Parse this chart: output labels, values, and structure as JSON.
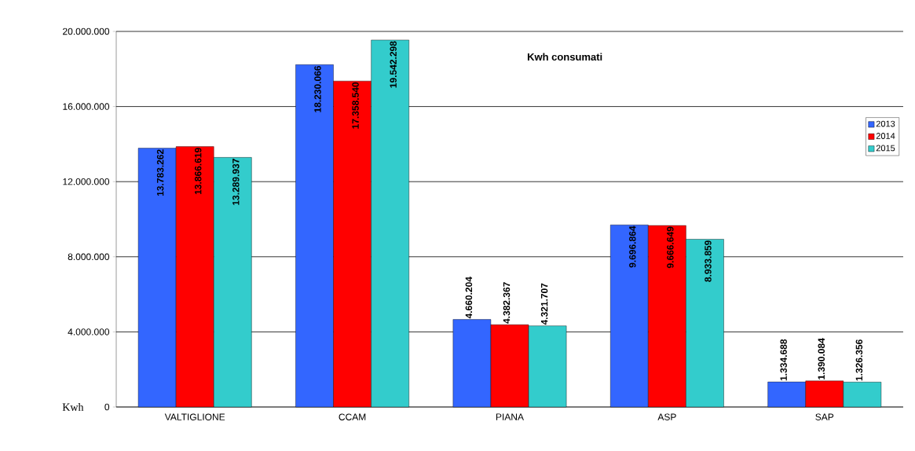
{
  "chart_data": {
    "type": "bar",
    "title": "Kwh consumati",
    "ylabel": "Kwh",
    "categories": [
      "VALTIGLIONE",
      "CCAM",
      "PIANA",
      "ASP",
      "SAP"
    ],
    "series": [
      {
        "name": "2013",
        "color": "#3366ff",
        "values": [
          13783262,
          18230066,
          4660204,
          9696864,
          1334688
        ],
        "value_labels": [
          "13.783.262",
          "18.230.066",
          "4.660.204",
          "9.696.864",
          "1.334.688"
        ]
      },
      {
        "name": "2014",
        "color": "#ff0000",
        "values": [
          13866619,
          17358540,
          4382367,
          9666649,
          1390084
        ],
        "value_labels": [
          "13.866.619",
          "17.358.540",
          "4.382.367",
          "9.666.649",
          "1.390.084"
        ]
      },
      {
        "name": "2015",
        "color": "#33cccc",
        "values": [
          13289937,
          19542298,
          4321707,
          8933859,
          1326356
        ],
        "value_labels": [
          "13.289.937",
          "19.542.298",
          "4.321.707",
          "8.933.859",
          "1.326.356"
        ]
      }
    ],
    "ylim": [
      0,
      20000000
    ],
    "yticks": [
      {
        "value": 0,
        "label": "0"
      },
      {
        "value": 4000000,
        "label": "4.000.000"
      },
      {
        "value": 8000000,
        "label": "8.000.000"
      },
      {
        "value": 12000000,
        "label": "12.000.000"
      },
      {
        "value": 16000000,
        "label": "16.000.000"
      },
      {
        "value": 20000000,
        "label": "20.000.000"
      }
    ],
    "grid": "y",
    "legend": "right"
  }
}
